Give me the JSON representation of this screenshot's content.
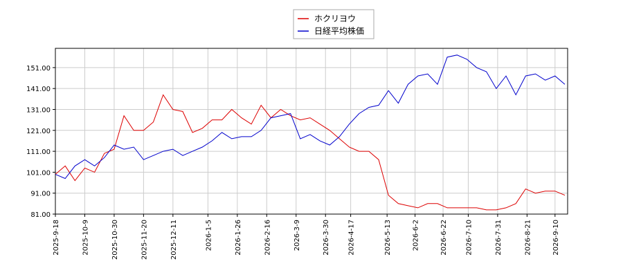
{
  "chart_data": {
    "type": "line",
    "x": [
      "2025-9-18",
      "2025-9-25",
      "2025-10-2",
      "2025-10-9",
      "2025-10-16",
      "2025-10-23",
      "2025-10-30",
      "2025-11-6",
      "2025-11-13",
      "2025-11-20",
      "2025-11-27",
      "2025-12-4",
      "2025-12-11",
      "2025-12-18",
      "2025-12-25",
      "2026-1-1",
      "2026-1-8",
      "2026-1-15",
      "2026-1-22",
      "2026-1-29",
      "2026-2-5",
      "2026-2-12",
      "2026-2-19",
      "2026-2-26",
      "2026-3-5",
      "2026-3-12",
      "2026-3-19",
      "2026-3-26",
      "2026-4-2",
      "2026-4-9",
      "2026-4-16",
      "2026-4-23",
      "2026-4-30",
      "2026-5-7",
      "2026-5-14",
      "2026-5-21",
      "2026-5-28",
      "2026-6-4",
      "2026-6-11",
      "2026-6-18",
      "2026-6-25",
      "2026-7-2",
      "2026-7-9",
      "2026-7-16",
      "2026-7-23",
      "2026-7-30",
      "2026-8-6",
      "2026-8-13",
      "2026-8-20",
      "2026-8-27",
      "2026-9-3",
      "2026-9-10",
      "2026-9-17"
    ],
    "series": [
      {
        "name": "ホクリヨウ",
        "color": "#dd0000",
        "values": [
          100,
          104,
          97,
          103,
          101,
          110,
          112,
          128,
          121,
          121,
          125,
          138,
          131,
          130,
          120,
          122,
          126,
          126,
          131,
          127,
          124,
          133,
          127,
          131,
          128,
          126,
          127,
          124,
          121,
          117,
          113,
          111,
          111,
          107,
          90,
          86,
          85,
          84,
          86,
          86,
          84,
          84,
          84,
          84,
          83,
          83,
          84,
          86,
          93,
          91,
          92,
          92,
          90
        ]
      },
      {
        "name": "日経平均株価",
        "color": "#0000cc",
        "values": [
          100,
          98,
          104,
          107,
          104,
          108,
          114,
          112,
          113,
          107,
          109,
          111,
          112,
          109,
          111,
          113,
          116,
          120,
          117,
          118,
          118,
          121,
          127,
          128,
          129,
          117,
          119,
          116,
          114,
          118,
          124,
          129,
          132,
          133,
          140,
          134,
          143,
          147,
          148,
          143,
          156,
          157,
          155,
          151,
          149,
          141,
          147,
          138,
          147,
          148,
          145,
          147,
          143
        ]
      }
    ],
    "xlim": [
      "2025-9-18",
      "2026-9-19"
    ],
    "xticks": [
      "2025-9-18",
      "2025-10-9",
      "2025-10-30",
      "2025-11-20",
      "2025-12-11",
      "2026-1-5",
      "2026-1-26",
      "2026-2-16",
      "2026-3-9",
      "2026-3-30",
      "2026-4-17",
      "2026-5-13",
      "2026-6-2",
      "2026-6-22",
      "2026-7-10",
      "2026-7-31",
      "2026-8-21",
      "2026-9-10"
    ],
    "ylim": [
      81,
      160.2
    ],
    "yticks": [
      {
        "value": 81,
        "label": "81.00"
      },
      {
        "value": 91,
        "label": "91.00"
      },
      {
        "value": 101,
        "label": "101.00"
      },
      {
        "value": 111,
        "label": "111.00"
      },
      {
        "value": 121,
        "label": "121.00"
      },
      {
        "value": 131,
        "label": "131.00"
      },
      {
        "value": 141,
        "label": "141.00"
      },
      {
        "value": 151,
        "label": "151.00"
      }
    ],
    "grid": true
  }
}
